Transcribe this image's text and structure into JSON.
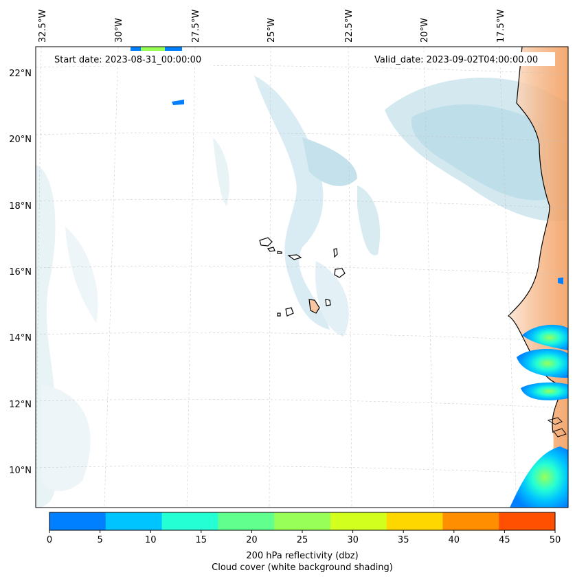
{
  "map": {
    "start_label": "Start date: 2023-08-31_00:00:00",
    "valid_label": "Valid_date: 2023-09-02T04:00:00.00",
    "lon_labels": [
      "32.5°W",
      "30°W",
      "27.5°W",
      "25°W",
      "22.5°W",
      "20°W",
      "17.5°W"
    ],
    "lat_labels": [
      "22°N",
      "20°N",
      "18°N",
      "16°N",
      "14°N",
      "12°N",
      "10°N"
    ],
    "colors": {
      "coast": "#000000",
      "cloud_light": "#e6f2f6",
      "cloud_mid": "#cfe6ee",
      "cloud_dark": "#a9d3e2",
      "land_warm": "#f6b98c",
      "land_hot": "#f29a57"
    }
  },
  "colorbar": {
    "ticks": [
      "0",
      "5",
      "10",
      "15",
      "20",
      "25",
      "30",
      "35",
      "40",
      "45",
      "50"
    ],
    "colors": [
      "#0080ff",
      "#00c4ff",
      "#25ffd4",
      "#61ff8e",
      "#98ff59",
      "#d2ff1d",
      "#ffd700",
      "#ff8e00",
      "#ff4f00"
    ],
    "label_line1": "200 hPa reflectivity (dbz)",
    "label_line2": "Cloud cover (white background shading)"
  }
}
